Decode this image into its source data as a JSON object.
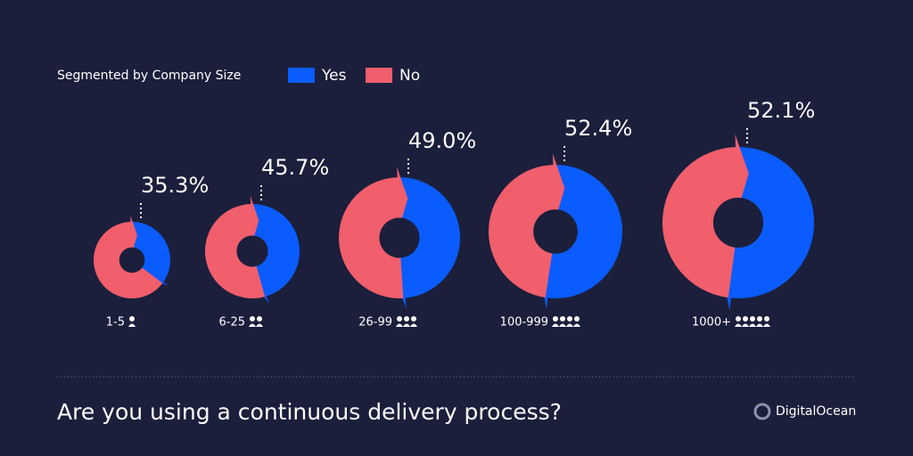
{
  "chart_data": {
    "type": "donut",
    "title": "Are you using a continuous delivery process?",
    "subtitle": "Segmented by Company Size",
    "categories": [
      "1-5",
      "6-25",
      "26-99",
      "100-999",
      "1000+"
    ],
    "series": [
      {
        "name": "Yes",
        "color": "#0a5cff",
        "values": [
          35.3,
          45.7,
          49.0,
          52.4,
          52.1
        ],
        "value_labels": [
          "35.3%",
          "45.7%",
          "49.0%",
          "52.4%",
          "52.1%"
        ]
      },
      {
        "name": "No",
        "color": "#f15e6c",
        "values": [
          64.7,
          54.3,
          51.0,
          47.6,
          47.9
        ]
      }
    ]
  },
  "footer": {
    "brand": "DigitalOcean"
  }
}
